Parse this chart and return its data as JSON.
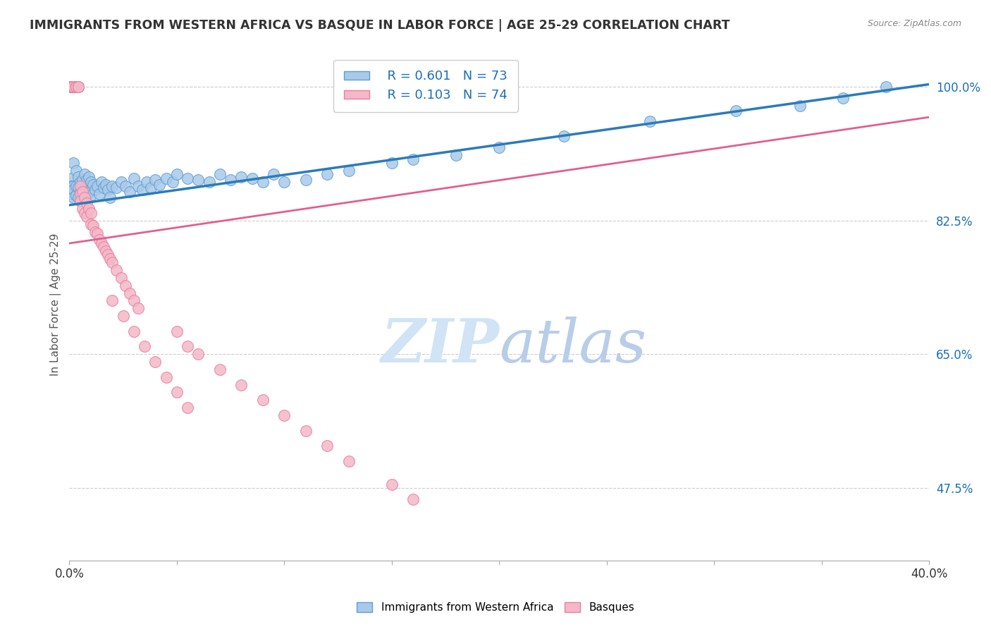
{
  "title": "IMMIGRANTS FROM WESTERN AFRICA VS BASQUE IN LABOR FORCE | AGE 25-29 CORRELATION CHART",
  "source": "Source: ZipAtlas.com",
  "ylabel": "In Labor Force | Age 25-29",
  "xlim": [
    0.0,
    0.4
  ],
  "ylim": [
    0.38,
    1.05
  ],
  "xtick_values": [
    0.0,
    0.05,
    0.1,
    0.15,
    0.2,
    0.25,
    0.3,
    0.35,
    0.4
  ],
  "xtick_labels_sparse": {
    "0": "0.0%",
    "8": "40.0%"
  },
  "ytick_values_right": [
    1.0,
    0.825,
    0.65,
    0.475
  ],
  "ytick_labels_right": [
    "100.0%",
    "82.5%",
    "65.0%",
    "47.5%"
  ],
  "blue_R": 0.601,
  "blue_N": 73,
  "pink_R": 0.103,
  "pink_N": 74,
  "blue_color": "#aac9e8",
  "pink_color": "#f4b8c8",
  "blue_edge_color": "#5b9fd4",
  "pink_edge_color": "#e87fa0",
  "blue_line_color": "#2b7bba",
  "pink_line_color": "#e06090",
  "legend_R_color": "#1a6fba",
  "watermark_zip_color": "#d0e4f5",
  "watermark_atlas_color": "#b8cde8",
  "background_color": "#ffffff",
  "blue_trend_y0": 0.845,
  "blue_trend_y1": 1.003,
  "pink_trend_y0": 0.795,
  "pink_trend_y1": 0.96,
  "blue_scatter_x": [
    0.001,
    0.001,
    0.001,
    0.002,
    0.002,
    0.002,
    0.002,
    0.003,
    0.003,
    0.003,
    0.004,
    0.004,
    0.004,
    0.005,
    0.005,
    0.005,
    0.006,
    0.006,
    0.007,
    0.007,
    0.008,
    0.008,
    0.009,
    0.009,
    0.01,
    0.01,
    0.011,
    0.012,
    0.013,
    0.014,
    0.015,
    0.016,
    0.017,
    0.018,
    0.019,
    0.02,
    0.022,
    0.024,
    0.026,
    0.028,
    0.03,
    0.032,
    0.034,
    0.036,
    0.038,
    0.04,
    0.042,
    0.045,
    0.048,
    0.05,
    0.055,
    0.06,
    0.065,
    0.07,
    0.075,
    0.08,
    0.085,
    0.09,
    0.095,
    0.1,
    0.11,
    0.12,
    0.13,
    0.15,
    0.16,
    0.18,
    0.2,
    0.23,
    0.27,
    0.31,
    0.34,
    0.36,
    0.38
  ],
  "blue_scatter_y": [
    0.88,
    0.87,
    0.86,
    0.9,
    0.87,
    0.865,
    0.855,
    0.89,
    0.87,
    0.858,
    0.882,
    0.868,
    0.855,
    0.875,
    0.862,
    0.85,
    0.878,
    0.86,
    0.885,
    0.862,
    0.878,
    0.858,
    0.882,
    0.862,
    0.875,
    0.858,
    0.872,
    0.865,
    0.87,
    0.86,
    0.875,
    0.868,
    0.872,
    0.865,
    0.855,
    0.87,
    0.868,
    0.875,
    0.87,
    0.862,
    0.88,
    0.87,
    0.865,
    0.875,
    0.868,
    0.878,
    0.872,
    0.88,
    0.875,
    0.885,
    0.88,
    0.878,
    0.875,
    0.885,
    0.878,
    0.882,
    0.88,
    0.875,
    0.885,
    0.875,
    0.878,
    0.885,
    0.89,
    0.9,
    0.905,
    0.91,
    0.92,
    0.935,
    0.955,
    0.968,
    0.975,
    0.985,
    1.0
  ],
  "pink_scatter_x": [
    0.001,
    0.001,
    0.001,
    0.001,
    0.001,
    0.001,
    0.001,
    0.001,
    0.001,
    0.001,
    0.001,
    0.001,
    0.001,
    0.001,
    0.002,
    0.002,
    0.002,
    0.002,
    0.002,
    0.003,
    0.003,
    0.003,
    0.003,
    0.004,
    0.004,
    0.004,
    0.005,
    0.005,
    0.005,
    0.006,
    0.006,
    0.007,
    0.007,
    0.008,
    0.008,
    0.009,
    0.01,
    0.01,
    0.011,
    0.012,
    0.013,
    0.014,
    0.015,
    0.016,
    0.017,
    0.018,
    0.019,
    0.02,
    0.022,
    0.024,
    0.026,
    0.028,
    0.03,
    0.032,
    0.05,
    0.055,
    0.06,
    0.07,
    0.08,
    0.09,
    0.1,
    0.11,
    0.12,
    0.13,
    0.15,
    0.16,
    0.02,
    0.025,
    0.03,
    0.035,
    0.04,
    0.045,
    0.05,
    0.055
  ],
  "pink_scatter_y": [
    1.0,
    1.0,
    1.0,
    1.0,
    1.0,
    1.0,
    1.0,
    1.0,
    1.0,
    1.0,
    1.0,
    1.0,
    1.0,
    1.0,
    1.0,
    1.0,
    1.0,
    1.0,
    1.0,
    1.0,
    1.0,
    1.0,
    1.0,
    1.0,
    1.0,
    1.0,
    0.87,
    0.86,
    0.85,
    0.862,
    0.84,
    0.855,
    0.835,
    0.848,
    0.83,
    0.84,
    0.835,
    0.82,
    0.818,
    0.81,
    0.808,
    0.8,
    0.795,
    0.79,
    0.785,
    0.78,
    0.775,
    0.77,
    0.76,
    0.75,
    0.74,
    0.73,
    0.72,
    0.71,
    0.68,
    0.66,
    0.65,
    0.63,
    0.61,
    0.59,
    0.57,
    0.55,
    0.53,
    0.51,
    0.48,
    0.46,
    0.72,
    0.7,
    0.68,
    0.66,
    0.64,
    0.62,
    0.6,
    0.58
  ]
}
